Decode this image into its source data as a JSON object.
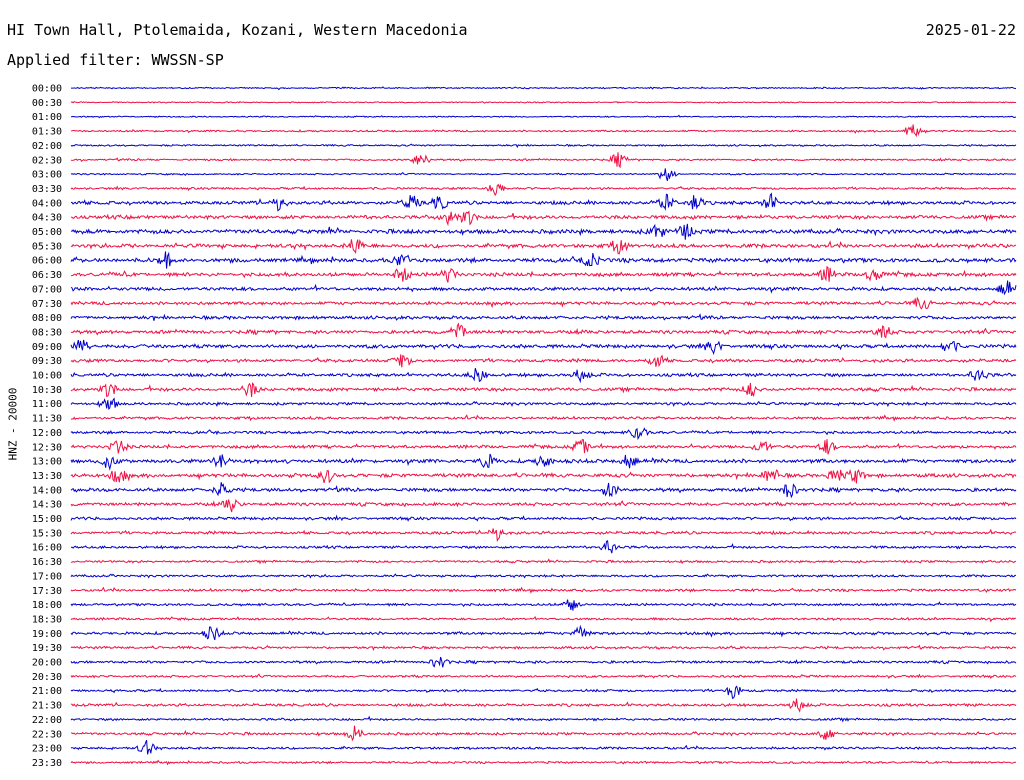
{
  "header": {
    "station": "HI Town Hall, Ptolemaida, Kozani, Western Macedonia",
    "date": "2025-01-22",
    "filter_prefix": "Applied filter:",
    "filter_name": "WWSSN-SP",
    "channel": "HNZ - 20000"
  },
  "chart_data": {
    "type": "line",
    "title": "HI Town Hall, Ptolemaida, Kozani, Western Macedonia",
    "ylabel": "HNZ - 20000",
    "y_ticks": [
      "00:00",
      "00:30",
      "01:00",
      "01:30",
      "02:00",
      "02:30",
      "03:00",
      "03:30",
      "04:00",
      "04:30",
      "05:00",
      "05:30",
      "06:00",
      "06:30",
      "07:00",
      "07:30",
      "08:00",
      "08:30",
      "09:00",
      "09:30",
      "10:00",
      "10:30",
      "11:00",
      "11:30",
      "12:00",
      "12:30",
      "13:00",
      "13:30",
      "14:00",
      "14:30",
      "15:00",
      "15:30",
      "16:00",
      "16:30",
      "17:00",
      "17:30",
      "18:00",
      "18:30",
      "19:00",
      "19:30",
      "20:00",
      "20:30",
      "21:00",
      "21:30",
      "22:00",
      "22:30",
      "23:00",
      "23:30"
    ],
    "series_colors": [
      "#0000cc",
      "#ee1144"
    ],
    "activity": [
      0.12,
      0.08,
      0.1,
      0.2,
      0.18,
      0.22,
      0.15,
      0.28,
      0.55,
      0.6,
      0.7,
      0.62,
      0.68,
      0.6,
      0.55,
      0.5,
      0.5,
      0.55,
      0.58,
      0.5,
      0.48,
      0.52,
      0.4,
      0.38,
      0.4,
      0.48,
      0.6,
      0.6,
      0.55,
      0.5,
      0.42,
      0.42,
      0.35,
      0.3,
      0.3,
      0.35,
      0.32,
      0.3,
      0.4,
      0.33,
      0.35,
      0.3,
      0.32,
      0.38,
      0.3,
      0.35,
      0.3,
      0.25
    ],
    "bursts": [
      [],
      [],
      [],
      [
        0.89
      ],
      [],
      [
        0.37,
        0.58
      ],
      [
        0.63
      ],
      [
        0.45
      ],
      [
        0.22,
        0.36,
        0.39,
        0.63,
        0.66,
        0.74
      ],
      [
        0.4,
        0.42
      ],
      [
        0.62,
        0.65
      ],
      [
        0.3,
        0.58
      ],
      [
        0.1,
        0.35,
        0.55
      ],
      [
        0.35,
        0.4,
        0.8,
        0.85
      ],
      [
        0.99
      ],
      [
        0.9
      ],
      [],
      [
        0.41,
        0.86
      ],
      [
        0.01,
        0.68,
        0.93
      ],
      [
        0.35,
        0.62
      ],
      [
        0.43,
        0.54,
        0.96
      ],
      [
        0.04,
        0.19,
        0.72
      ],
      [
        0.04
      ],
      [],
      [
        0.6
      ],
      [
        0.05,
        0.54,
        0.73,
        0.8
      ],
      [
        0.04,
        0.16,
        0.44,
        0.5,
        0.59
      ],
      [
        0.05,
        0.27,
        0.74,
        0.81,
        0.83
      ],
      [
        0.16,
        0.57,
        0.76
      ],
      [
        0.17
      ],
      [],
      [
        0.45
      ],
      [
        0.57
      ],
      [],
      [],
      [],
      [
        0.53
      ],
      [],
      [
        0.15,
        0.54
      ],
      [],
      [
        0.39
      ],
      [],
      [
        0.7
      ],
      [
        0.77
      ],
      [],
      [
        0.3,
        0.8
      ],
      [
        0.08
      ],
      []
    ]
  }
}
